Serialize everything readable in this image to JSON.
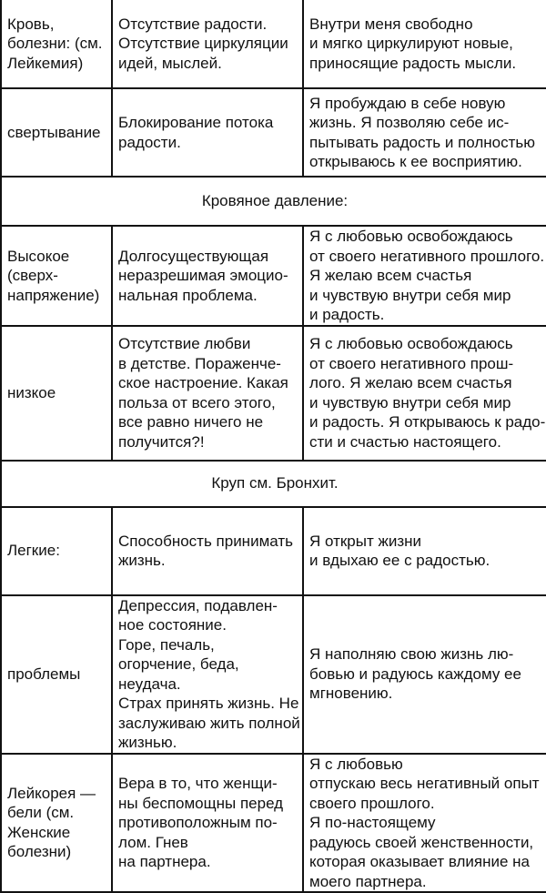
{
  "rows": [
    {
      "type": "row",
      "cells": [
        [
          "Кровь,",
          "болезни: (см.",
          "Лейкемия)"
        ],
        [
          "Отсутствие радости.",
          "Отсутствие циркуляции",
          "идей, мыслей."
        ],
        [
          "Внутри меня свободно",
          "и мягко циркулируют новые,",
          "приносящие радость мысли."
        ]
      ]
    },
    {
      "type": "row",
      "cells": [
        [
          "свертывание"
        ],
        [
          "Блокирование потока",
          "радости."
        ],
        [
          "Я пробуждаю в себе новую",
          "жизнь. Я позволяю себе ис-",
          "пытывать радость и полностью",
          "открываюсь к ее восприятию."
        ]
      ]
    },
    {
      "type": "heading",
      "text": "Кровяное давление:"
    },
    {
      "type": "row",
      "cells": [
        [
          "Высокое",
          "(сверх-",
          "напряжение)"
        ],
        [
          "Долгосуществующая",
          "неразрешимая эмоцио-",
          "нальная проблема."
        ],
        [
          "Я с любовью освобождаюсь",
          "от своего негативного прошлого.",
          "Я желаю всем счастья",
          "и чувствую внутри себя мир",
          "и радость."
        ]
      ]
    },
    {
      "type": "row",
      "cells": [
        [
          "низкое"
        ],
        [
          "Отсутствие любви",
          "в детстве. Пораженче-",
          "ское настроение. Какая",
          "польза от всего этого,",
          "все равно ничего не",
          "получится?!"
        ],
        [
          "Я с любовью освобождаюсь",
          "от своего негативного прош-",
          "лого. Я желаю всем счастья",
          "и чувствую внутри себя мир",
          "и радость. Я открываюсь к радо-",
          "сти и счастью настоящего."
        ]
      ]
    },
    {
      "type": "heading",
      "text": "Круп см. Бронхит."
    },
    {
      "type": "row",
      "cells": [
        [
          "Легкие:"
        ],
        [
          "Способность принимать",
          "жизнь."
        ],
        [
          "Я открыт жизни",
          "и вдыхаю ее с радостью."
        ]
      ]
    },
    {
      "type": "row",
      "cells": [
        [
          "проблемы"
        ],
        [
          "Депрессия, подавлен-",
          "ное состояние.",
          "Горе, печаль,",
          "огорчение, беда,",
          "неудача.",
          "Страх принять жизнь. Не",
          "заслуживаю жить полной",
          "жизнью."
        ],
        [
          "Я наполняю свою жизнь лю-",
          "бовью и радуюсь каждому ее",
          "мгновению."
        ]
      ]
    },
    {
      "type": "row",
      "cells": [
        [
          "Лейкорея —",
          "бели (см.",
          "Женские",
          "болезни)"
        ],
        [
          "Вера в то, что женщи-",
          "ны беспомощны перед",
          "противоположным по-",
          "лом. Гнев",
          "на партнера."
        ],
        [
          "Я с любовью",
          "отпускаю весь негативный опыт",
          "своего прошлого.",
          "Я по-настоящему",
          "радуюсь своей женственности,",
          "которая оказывает влияние на",
          "моего партнера."
        ]
      ]
    }
  ]
}
